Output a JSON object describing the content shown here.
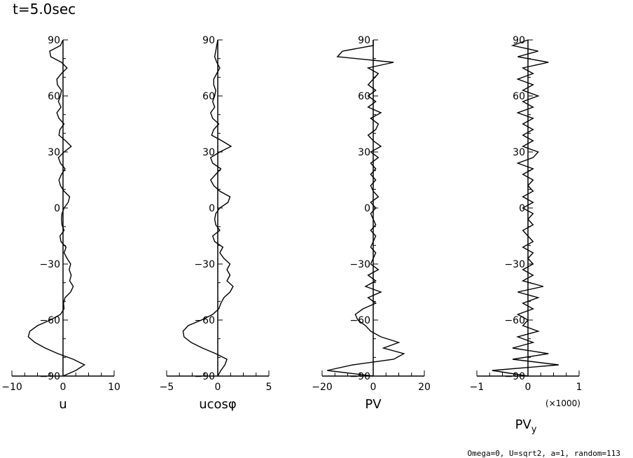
{
  "title": "t=5.0sec",
  "footer": "Omega=0, U=sqrt2, a=1, random=113",
  "chart_data": [
    {
      "type": "line",
      "xlabel": "u",
      "xlim": [
        -10,
        10
      ],
      "xticks": [
        "−10",
        "0",
        "10"
      ],
      "ylim": [
        -90,
        90
      ],
      "yticks": [
        "−90",
        "−60",
        "−30",
        "0",
        "30",
        "60",
        "90"
      ],
      "series": [
        {
          "y": [
            -90,
            -87,
            -84,
            -81,
            -78,
            -75,
            -72,
            -69,
            -66,
            -63,
            -60,
            -57,
            -54,
            -51,
            -48,
            -45,
            -42,
            -39,
            -36,
            -33,
            -30,
            -27,
            -24,
            -21,
            -18,
            -15,
            -12,
            -9,
            -6,
            -3,
            0,
            3,
            6,
            9,
            12,
            15,
            18,
            21,
            24,
            27,
            30,
            33,
            36,
            39,
            42,
            45,
            48,
            51,
            54,
            57,
            60,
            63,
            66,
            69,
            72,
            75,
            78,
            81,
            84,
            87,
            90
          ],
          "x": [
            0,
            2.5,
            4.2,
            2.0,
            -1.0,
            -3.5,
            -5.5,
            -6.8,
            -6.5,
            -5.0,
            -2.5,
            -0.5,
            0.2,
            0.1,
            0.4,
            1.5,
            2.0,
            1.3,
            1.6,
            1.2,
            1.5,
            0.8,
            0.2,
            0.6,
            -0.4,
            -0.6,
            0.2,
            -0.2,
            -0.3,
            -0.2,
            0.2,
            1.0,
            1.3,
            0.2,
            -0.5,
            -0.8,
            -0.3,
            0.4,
            -0.5,
            -0.9,
            0.2,
            1.6,
            0.5,
            -0.8,
            -0.6,
            0.2,
            -0.8,
            -1.2,
            -0.4,
            -0.9,
            -0.5,
            -0.3,
            -1.1,
            -1.2,
            -0.3,
            0.8,
            -0.3,
            -2.4,
            -2.6,
            -0.5,
            0
          ]
        }
      ]
    },
    {
      "type": "line",
      "xlabel": "ucosφ",
      "xlim": [
        -5,
        5
      ],
      "xticks": [
        "−5",
        "0",
        "5"
      ],
      "ylim": [
        -90,
        90
      ],
      "yticks": [
        "−90",
        "−60",
        "−30",
        "0",
        "30",
        "60",
        "90"
      ],
      "series": [
        {
          "y": [
            -90,
            -87,
            -84,
            -81,
            -78,
            -75,
            -72,
            -69,
            -66,
            -63,
            -60,
            -57,
            -54,
            -51,
            -48,
            -45,
            -42,
            -39,
            -36,
            -33,
            -30,
            -27,
            -24,
            -21,
            -18,
            -15,
            -12,
            -9,
            -6,
            -3,
            0,
            3,
            6,
            9,
            12,
            15,
            18,
            21,
            24,
            27,
            30,
            33,
            36,
            39,
            42,
            45,
            48,
            51,
            54,
            57,
            60,
            63,
            66,
            69,
            72,
            75,
            78,
            81,
            84,
            87,
            90
          ],
          "x": [
            0,
            0.3,
            0.7,
            0.9,
            -0.2,
            -1.5,
            -2.6,
            -3.3,
            -3.4,
            -2.9,
            -1.6,
            -0.5,
            0.1,
            0.3,
            0.6,
            1.2,
            1.5,
            0.9,
            1.2,
            0.9,
            1.2,
            0.6,
            0.2,
            0.5,
            -0.3,
            -0.5,
            0.2,
            -0.2,
            -0.3,
            -0.2,
            0.2,
            1.0,
            1.2,
            0.2,
            -0.4,
            -0.7,
            -0.2,
            0.3,
            -0.5,
            -0.7,
            0.2,
            1.3,
            0.4,
            -0.6,
            -0.4,
            0.1,
            -0.5,
            -0.7,
            -0.3,
            -0.5,
            -0.3,
            -0.2,
            -0.4,
            -0.4,
            -0.1,
            0.2,
            -0.1,
            -0.3,
            -0.2,
            -0.1,
            0
          ]
        }
      ]
    },
    {
      "type": "line",
      "xlabel": "PV",
      "xlim": [
        -20,
        20
      ],
      "xticks": [
        "−20",
        "0",
        "20"
      ],
      "ylim": [
        -90,
        90
      ],
      "yticks": [
        "−90",
        "−60",
        "−30",
        "0",
        "30",
        "60",
        "90"
      ],
      "series": [
        {
          "y": [
            -90,
            -87,
            -84,
            -81,
            -78,
            -75,
            -72,
            -69,
            -66,
            -63,
            -60,
            -57,
            -54,
            -51,
            -48,
            -45,
            -42,
            -39,
            -36,
            -33,
            -30,
            -27,
            -24,
            -21,
            -18,
            -15,
            -12,
            -9,
            -6,
            -3,
            0,
            3,
            6,
            9,
            12,
            15,
            18,
            21,
            24,
            27,
            30,
            33,
            36,
            39,
            42,
            45,
            48,
            51,
            54,
            57,
            60,
            63,
            66,
            69,
            72,
            75,
            78,
            81,
            84,
            87,
            90
          ],
          "x": [
            0,
            -18,
            -8,
            8,
            12,
            4,
            10,
            3,
            -1,
            -3,
            -6,
            -7,
            -4,
            1,
            -2,
            3,
            -3,
            1,
            -2,
            2,
            -1,
            0,
            1,
            -1,
            0,
            1,
            -1,
            1,
            0,
            -1,
            1,
            -1,
            2,
            0,
            -1,
            1,
            -1,
            1,
            -1,
            2,
            -1,
            3,
            0,
            -2,
            1,
            2,
            -1,
            3,
            -2,
            1,
            -2,
            1,
            -2,
            0,
            2,
            -2,
            8,
            -14,
            -12,
            0,
            0
          ]
        }
      ]
    },
    {
      "type": "line",
      "xlabel": "PVy",
      "xlabel_main": "PV",
      "xlabel_sub": "y",
      "scale_note": "(×1000)",
      "xlim": [
        -1,
        1
      ],
      "xticks": [
        "−1",
        "0",
        "1"
      ],
      "ylim": [
        -90,
        90
      ],
      "yticks": [
        "−90",
        "−60",
        "−30",
        "0",
        "30",
        "60",
        "90"
      ],
      "series": [
        {
          "y": [
            -90,
            -87,
            -84,
            -81,
            -78,
            -75,
            -72,
            -69,
            -66,
            -63,
            -60,
            -57,
            -54,
            -51,
            -48,
            -45,
            -42,
            -39,
            -36,
            -33,
            -30,
            -27,
            -24,
            -21,
            -18,
            -15,
            -12,
            -9,
            -6,
            -3,
            0,
            3,
            6,
            9,
            12,
            15,
            18,
            21,
            24,
            27,
            30,
            33,
            36,
            39,
            42,
            45,
            48,
            51,
            54,
            57,
            60,
            63,
            66,
            69,
            72,
            75,
            78,
            81,
            84,
            87,
            90
          ],
          "x": [
            0,
            -0.7,
            0.6,
            -0.3,
            0.4,
            -0.3,
            0.1,
            -0.2,
            0.2,
            -0.1,
            0,
            -0.2,
            0.1,
            -0.1,
            0.2,
            -0.2,
            0.3,
            -0.1,
            0.1,
            -0.1,
            0.1,
            0,
            0.1,
            -0.1,
            0.1,
            0,
            -0.1,
            0.1,
            0,
            0.1,
            -0.1,
            0.1,
            -0.1,
            0.1,
            0,
            0.1,
            -0.1,
            0.1,
            -0.2,
            0.1,
            0.2,
            -0.1,
            0.1,
            -0.1,
            0.1,
            -0.1,
            0.1,
            -0.2,
            0.1,
            -0.1,
            0.2,
            -0.1,
            0.1,
            -0.2,
            0.1,
            -0.1,
            0.4,
            -0.2,
            0.2,
            -0.3,
            0
          ]
        }
      ]
    }
  ]
}
